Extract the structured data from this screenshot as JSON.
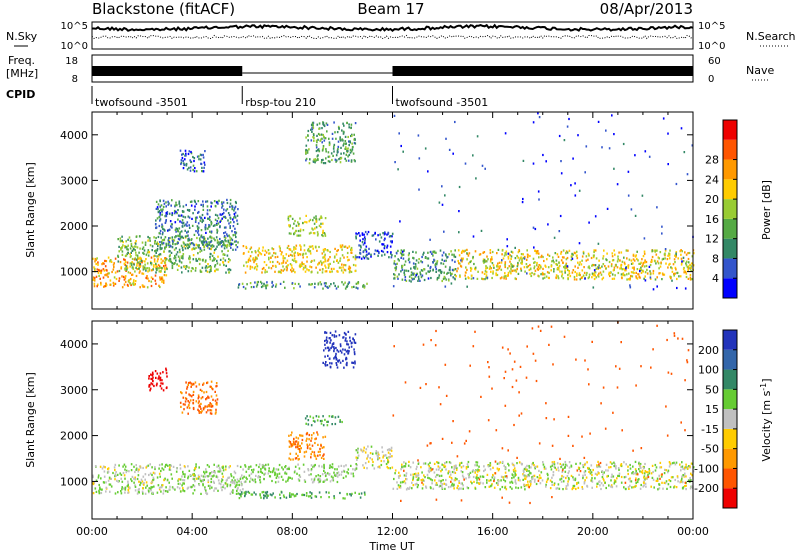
{
  "chart_data": {
    "type": "heatmap",
    "header": {
      "station": "Blackstone (fitACF)",
      "beam": "Beam 17",
      "date": "08/Apr/2013"
    },
    "strip_labels": {
      "nsky": "N.Sky",
      "nsearch": "N.Search",
      "freq_line1": "Freq.",
      "freq_line2": "[MHz]",
      "nave": "Nave",
      "cpid": "CPID"
    },
    "noise_strip": {
      "left_ticks": [
        "10^5",
        "10^0"
      ],
      "right_ticks": [
        "10^5",
        "10^0"
      ]
    },
    "freq_strip": {
      "left_ticks": [
        18,
        8
      ],
      "right_ticks": [
        60,
        0
      ]
    },
    "cpid_segments": [
      {
        "start": 0,
        "end": 6,
        "label": "twofsound -3501"
      },
      {
        "start": 6,
        "end": 12,
        "label": "rbsp-tou 210"
      },
      {
        "start": 12,
        "end": 24,
        "label": "twofsound -3501"
      }
    ],
    "x_axis": {
      "label": "Time UT",
      "ticks": [
        0,
        4,
        8,
        12,
        16,
        20,
        24
      ],
      "tick_labels": [
        "00:00",
        "04:00",
        "08:00",
        "12:00",
        "16:00",
        "20:00",
        "00:00"
      ],
      "range": [
        0,
        24
      ]
    },
    "y_axis": {
      "label": "Slant Range [km]",
      "ticks": [
        1000,
        2000,
        3000,
        4000
      ],
      "range": [
        180,
        4500
      ]
    },
    "power_panel": {
      "colorbar_label": "Power [dB]",
      "colorbar_ticks": [
        4,
        8,
        12,
        16,
        20,
        24,
        28
      ],
      "colors": [
        "#0000ff",
        "#3355cc",
        "#338866",
        "#55aa44",
        "#99cc33",
        "#ffcc00",
        "#ff9900",
        "#ff5500",
        "#ee0000"
      ],
      "regions": [
        {
          "t0": 0.0,
          "t1": 3.0,
          "r0": 680,
          "r1": 1350,
          "v": 25
        },
        {
          "t0": 1.0,
          "t1": 5.5,
          "r0": 1000,
          "r1": 1800,
          "v": 15
        },
        {
          "t0": 2.5,
          "t1": 5.8,
          "r0": 1500,
          "r1": 2600,
          "v": 9
        },
        {
          "t0": 3.5,
          "t1": 4.5,
          "r0": 3200,
          "r1": 3700,
          "v": 8
        },
        {
          "t0": 5.8,
          "t1": 11.0,
          "r0": 650,
          "r1": 800,
          "v": 13
        },
        {
          "t0": 6.0,
          "t1": 10.5,
          "r0": 1000,
          "r1": 1600,
          "v": 22
        },
        {
          "t0": 7.8,
          "t1": 9.3,
          "r0": 1800,
          "r1": 2250,
          "v": 18
        },
        {
          "t0": 8.5,
          "t1": 10.5,
          "r0": 3400,
          "r1": 4300,
          "v": 12
        },
        {
          "t0": 10.5,
          "t1": 12.0,
          "r0": 1300,
          "r1": 1900,
          "v": 6
        },
        {
          "t0": 12.0,
          "t1": 14.5,
          "r0": 800,
          "r1": 1500,
          "v": 12
        },
        {
          "t0": 14.5,
          "t1": 24.0,
          "r0": 850,
          "r1": 1500,
          "v": 21
        },
        {
          "t0": 12.0,
          "t1": 24.0,
          "r0": 600,
          "r1": 4500,
          "v": 5,
          "sparse": true
        }
      ]
    },
    "velocity_panel": {
      "colorbar_label": "Velocity [m s^-1]",
      "colorbar_ticks": [
        200,
        100,
        50,
        15,
        -15,
        -50,
        -100,
        -200
      ],
      "colors": [
        "#2233bb",
        "#3366aa",
        "#338866",
        "#66cc33",
        "#c0c0c0",
        "#ffcc00",
        "#ff9900",
        "#ff5500",
        "#ee0000"
      ],
      "regions": [
        {
          "t0": 0.0,
          "t1": 6.0,
          "r0": 750,
          "r1": 1400,
          "v": 0
        },
        {
          "t0": 2.2,
          "t1": 3.0,
          "r0": 3000,
          "r1": 3500,
          "v": -200
        },
        {
          "t0": 3.5,
          "t1": 5.0,
          "r0": 2500,
          "r1": 3200,
          "v": -80
        },
        {
          "t0": 5.8,
          "t1": 11.0,
          "r0": 650,
          "r1": 800,
          "v": 30
        },
        {
          "t0": 6.0,
          "t1": 10.5,
          "r0": 1000,
          "r1": 1400,
          "v": 5
        },
        {
          "t0": 7.8,
          "t1": 9.3,
          "r0": 1500,
          "r1": 2100,
          "v": -70
        },
        {
          "t0": 8.5,
          "t1": 10.0,
          "r0": 2250,
          "r1": 2450,
          "v": 30
        },
        {
          "t0": 9.2,
          "t1": 10.5,
          "r0": 3500,
          "r1": 4300,
          "v": 180
        },
        {
          "t0": 10.5,
          "t1": 12.0,
          "r0": 1300,
          "r1": 1800,
          "v": -10
        },
        {
          "t0": 12.0,
          "t1": 24.0,
          "r0": 850,
          "r1": 1450,
          "v": -5
        },
        {
          "t0": 12.0,
          "t1": 24.0,
          "r0": 500,
          "r1": 4500,
          "v": -120,
          "sparse": true
        }
      ]
    }
  }
}
